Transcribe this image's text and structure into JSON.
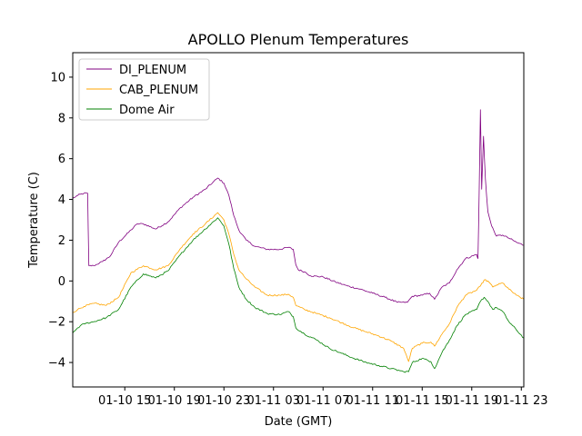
{
  "chart_data": {
    "type": "line",
    "title": "APOLLO Plenum Temperatures",
    "xlabel": "Date (GMT)",
    "ylabel": "Temperature (C)",
    "x_unit": "hours since 01-10 15:00 GMT",
    "xlim": [
      -4.2,
      32.2
    ],
    "ylim": [
      -5.2,
      11.2
    ],
    "x_ticks": [
      {
        "value": 0,
        "label": "01-10 15"
      },
      {
        "value": 4,
        "label": "01-10 19"
      },
      {
        "value": 8,
        "label": "01-10 23"
      },
      {
        "value": 12,
        "label": "01-11 03"
      },
      {
        "value": 16,
        "label": "01-11 07"
      },
      {
        "value": 20,
        "label": "01-11 11"
      },
      {
        "value": 24,
        "label": "01-11 15"
      },
      {
        "value": 28,
        "label": "01-11 19"
      },
      {
        "value": 32,
        "label": "01-11 23"
      }
    ],
    "y_ticks": [
      {
        "value": -4,
        "label": "−4"
      },
      {
        "value": -2,
        "label": "−2"
      },
      {
        "value": 0,
        "label": "0"
      },
      {
        "value": 2,
        "label": "2"
      },
      {
        "value": 4,
        "label": "4"
      },
      {
        "value": 6,
        "label": "6"
      },
      {
        "value": 8,
        "label": "8"
      },
      {
        "value": 10,
        "label": "10"
      }
    ],
    "legend_position": "top-left",
    "series": [
      {
        "name": "DI_PLENUM",
        "color": "#800080",
        "points": [
          [
            -4.2,
            4.05
          ],
          [
            -3.8,
            4.2
          ],
          [
            -3.3,
            4.3
          ],
          [
            -3.0,
            4.3
          ],
          [
            -2.9,
            0.75
          ],
          [
            -2.5,
            0.75
          ],
          [
            -1.8,
            0.95
          ],
          [
            -1.2,
            1.2
          ],
          [
            -0.5,
            1.9
          ],
          [
            0.5,
            2.5
          ],
          [
            1.0,
            2.8
          ],
          [
            1.5,
            2.8
          ],
          [
            2.5,
            2.55
          ],
          [
            3.5,
            2.9
          ],
          [
            4.5,
            3.6
          ],
          [
            5.5,
            4.1
          ],
          [
            6.5,
            4.5
          ],
          [
            7.5,
            5.05
          ],
          [
            8.0,
            4.8
          ],
          [
            8.4,
            4.2
          ],
          [
            8.8,
            3.2
          ],
          [
            9.2,
            2.5
          ],
          [
            9.8,
            2.0
          ],
          [
            10.5,
            1.7
          ],
          [
            11.5,
            1.55
          ],
          [
            12.5,
            1.55
          ],
          [
            13.2,
            1.65
          ],
          [
            13.6,
            1.55
          ],
          [
            13.8,
            0.8
          ],
          [
            14.0,
            0.55
          ],
          [
            14.5,
            0.45
          ],
          [
            15.0,
            0.25
          ],
          [
            16.0,
            0.2
          ],
          [
            17.0,
            -0.05
          ],
          [
            18.0,
            -0.25
          ],
          [
            19.0,
            -0.4
          ],
          [
            20.0,
            -0.6
          ],
          [
            21.0,
            -0.8
          ],
          [
            22.0,
            -1.05
          ],
          [
            22.8,
            -1.05
          ],
          [
            23.2,
            -0.75
          ],
          [
            24.0,
            -0.7
          ],
          [
            24.6,
            -0.6
          ],
          [
            25.0,
            -0.9
          ],
          [
            25.6,
            -0.3
          ],
          [
            26.2,
            -0.1
          ],
          [
            26.8,
            0.55
          ],
          [
            27.5,
            1.1
          ],
          [
            28.4,
            1.3
          ],
          [
            28.5,
            1.1
          ],
          [
            28.6,
            4.3
          ],
          [
            28.7,
            8.4
          ],
          [
            28.8,
            4.5
          ],
          [
            28.95,
            7.1
          ],
          [
            29.1,
            5.0
          ],
          [
            29.3,
            3.4
          ],
          [
            29.6,
            2.7
          ],
          [
            30.0,
            2.2
          ],
          [
            30.5,
            2.25
          ],
          [
            31.0,
            2.1
          ],
          [
            31.6,
            1.9
          ],
          [
            32.2,
            1.75
          ]
        ]
      },
      {
        "name": "CAB_PLENUM",
        "color": "#ffa500",
        "points": [
          [
            -4.2,
            -1.55
          ],
          [
            -3.8,
            -1.4
          ],
          [
            -3.3,
            -1.25
          ],
          [
            -2.5,
            -1.1
          ],
          [
            -1.5,
            -1.2
          ],
          [
            -0.5,
            -0.8
          ],
          [
            0.5,
            0.4
          ],
          [
            1.5,
            0.75
          ],
          [
            2.5,
            0.55
          ],
          [
            3.5,
            0.75
          ],
          [
            4.5,
            1.6
          ],
          [
            5.5,
            2.3
          ],
          [
            6.5,
            2.8
          ],
          [
            7.5,
            3.35
          ],
          [
            8.0,
            3.0
          ],
          [
            8.4,
            2.3
          ],
          [
            8.8,
            1.3
          ],
          [
            9.2,
            0.55
          ],
          [
            9.8,
            0.1
          ],
          [
            10.5,
            -0.3
          ],
          [
            11.5,
            -0.7
          ],
          [
            12.5,
            -0.7
          ],
          [
            13.2,
            -0.65
          ],
          [
            13.6,
            -0.8
          ],
          [
            13.8,
            -1.2
          ],
          [
            14.5,
            -1.4
          ],
          [
            15.5,
            -1.6
          ],
          [
            16.5,
            -1.8
          ],
          [
            17.5,
            -2.05
          ],
          [
            18.5,
            -2.3
          ],
          [
            19.5,
            -2.5
          ],
          [
            20.5,
            -2.7
          ],
          [
            21.5,
            -2.95
          ],
          [
            22.5,
            -3.3
          ],
          [
            22.9,
            -3.95
          ],
          [
            23.2,
            -3.3
          ],
          [
            24.0,
            -3.05
          ],
          [
            24.7,
            -3.0
          ],
          [
            25.0,
            -3.2
          ],
          [
            25.6,
            -2.6
          ],
          [
            26.2,
            -2.1
          ],
          [
            26.8,
            -1.3
          ],
          [
            27.5,
            -0.7
          ],
          [
            28.4,
            -0.45
          ],
          [
            28.7,
            -0.25
          ],
          [
            29.0,
            0.05
          ],
          [
            29.3,
            0.0
          ],
          [
            29.7,
            -0.3
          ],
          [
            30.0,
            -0.2
          ],
          [
            30.5,
            -0.1
          ],
          [
            31.0,
            -0.4
          ],
          [
            31.6,
            -0.7
          ],
          [
            32.2,
            -0.9
          ]
        ]
      },
      {
        "name": "Dome Air",
        "color": "#008000",
        "points": [
          [
            -4.2,
            -2.55
          ],
          [
            -3.8,
            -2.3
          ],
          [
            -3.3,
            -2.1
          ],
          [
            -2.5,
            -2.0
          ],
          [
            -1.5,
            -1.8
          ],
          [
            -0.5,
            -1.4
          ],
          [
            0.5,
            -0.3
          ],
          [
            1.5,
            0.35
          ],
          [
            2.5,
            0.15
          ],
          [
            3.5,
            0.5
          ],
          [
            4.5,
            1.3
          ],
          [
            5.5,
            2.0
          ],
          [
            6.5,
            2.55
          ],
          [
            7.5,
            3.1
          ],
          [
            8.0,
            2.7
          ],
          [
            8.4,
            1.8
          ],
          [
            8.8,
            0.6
          ],
          [
            9.2,
            -0.3
          ],
          [
            9.8,
            -0.9
          ],
          [
            10.5,
            -1.3
          ],
          [
            11.5,
            -1.6
          ],
          [
            12.5,
            -1.65
          ],
          [
            13.2,
            -1.5
          ],
          [
            13.6,
            -1.75
          ],
          [
            13.8,
            -2.3
          ],
          [
            14.5,
            -2.6
          ],
          [
            15.5,
            -2.9
          ],
          [
            16.5,
            -3.3
          ],
          [
            17.5,
            -3.55
          ],
          [
            18.5,
            -3.8
          ],
          [
            19.5,
            -4.0
          ],
          [
            20.5,
            -4.15
          ],
          [
            21.5,
            -4.3
          ],
          [
            22.5,
            -4.45
          ],
          [
            22.9,
            -4.45
          ],
          [
            23.2,
            -4.0
          ],
          [
            24.0,
            -3.8
          ],
          [
            24.7,
            -3.95
          ],
          [
            25.0,
            -4.3
          ],
          [
            25.6,
            -3.5
          ],
          [
            26.2,
            -2.9
          ],
          [
            26.8,
            -2.2
          ],
          [
            27.5,
            -1.65
          ],
          [
            28.4,
            -1.4
          ],
          [
            28.7,
            -1.0
          ],
          [
            29.0,
            -0.8
          ],
          [
            29.3,
            -1.0
          ],
          [
            29.7,
            -1.4
          ],
          [
            30.0,
            -1.3
          ],
          [
            30.5,
            -1.5
          ],
          [
            31.0,
            -2.0
          ],
          [
            31.6,
            -2.4
          ],
          [
            32.2,
            -2.8
          ]
        ]
      }
    ]
  }
}
